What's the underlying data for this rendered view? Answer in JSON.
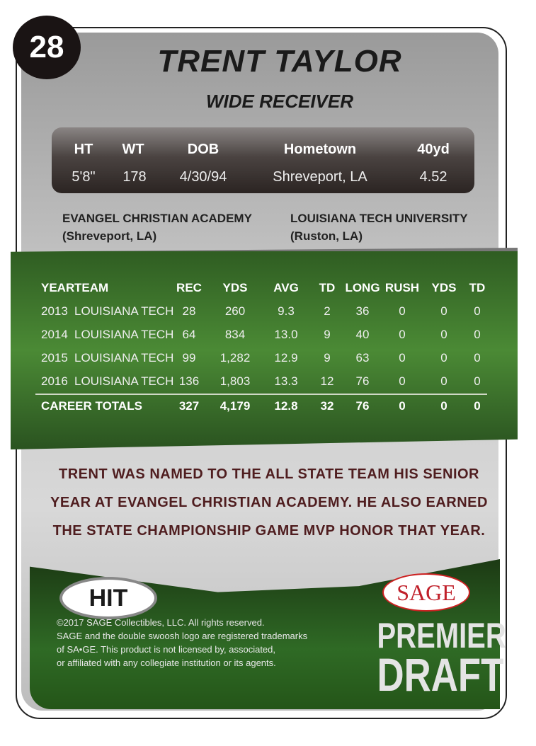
{
  "card_number": "28",
  "player": {
    "name": "TRENT TAYLOR",
    "position": "WIDE RECEIVER"
  },
  "bio": {
    "headers": [
      "HT",
      "WT",
      "DOB",
      "Hometown",
      "40yd"
    ],
    "values": [
      "5'8\"",
      "178",
      "4/30/94",
      "Shreveport, LA",
      "4.52"
    ]
  },
  "schools": [
    {
      "name": "EVANGEL CHRISTIAN ACADEMY",
      "location": "(Shreveport, LA)"
    },
    {
      "name": "LOUISIANA TECH UNIVERSITY",
      "location": "(Ruston, LA)"
    }
  ],
  "stats": {
    "headers": [
      "YEAR",
      "TEAM",
      "REC",
      "YDS",
      "AVG",
      "TD",
      "LONG",
      "RUSH",
      "YDS",
      "TD"
    ],
    "rows": [
      [
        "2013",
        "LOUISIANA TECH",
        "28",
        "260",
        "9.3",
        "2",
        "36",
        "0",
        "0",
        "0"
      ],
      [
        "2014",
        "LOUISIANA TECH",
        "64",
        "834",
        "13.0",
        "9",
        "40",
        "0",
        "0",
        "0"
      ],
      [
        "2015",
        "LOUISIANA TECH",
        "99",
        "1,282",
        "12.9",
        "9",
        "63",
        "0",
        "0",
        "0"
      ],
      [
        "2016",
        "LOUISIANA TECH",
        "136",
        "1,803",
        "13.3",
        "12",
        "76",
        "0",
        "0",
        "0"
      ]
    ],
    "totals": [
      "CAREER TOTALS",
      "327",
      "4,179",
      "12.8",
      "32",
      "76",
      "0",
      "0",
      "0"
    ]
  },
  "blurb": [
    "TRENT WAS NAMED TO THE ALL STATE TEAM HIS SENIOR",
    "YEAR AT EVANGEL CHRISTIAN ACADEMY.  HE ALSO EARNED",
    "THE STATE CHAMPIONSHIP GAME MVP HONOR THAT YEAR."
  ],
  "logos": {
    "hit": "HIT",
    "sage": "SAGE",
    "product_line": [
      "PREMIER",
      "DRAFT"
    ]
  },
  "legal": [
    "©2017 SAGE Collectibles, LLC.  All rights reserved.",
    "SAGE and the double swoosh logo are registered trademarks",
    "of SA•GE. This product is not licensed by, associated,",
    "or affiliated with any collegiate institution or its agents."
  ],
  "colors": {
    "green": "#3f7a2e",
    "maroon": "#4f1d1f",
    "sage_red": "#c0202a"
  }
}
